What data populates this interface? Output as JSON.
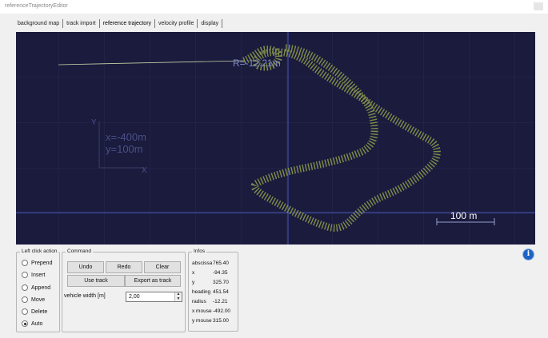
{
  "window": {
    "title": "referenceTrajectoryEditor"
  },
  "tabs": [
    {
      "label": "background map"
    },
    {
      "label": "track import"
    },
    {
      "label": "reference trajectory"
    },
    {
      "label": "velocity profile"
    },
    {
      "label": "display"
    }
  ],
  "view": {
    "radius_label": "R=-12.21m",
    "origin_y_axis": "Y",
    "origin_x_axis": "X",
    "origin_x": "x=-400m",
    "origin_y": "y=100m",
    "scale_label": "100 m",
    "colors": {
      "background": "#1a1b3d",
      "track": "#e8f0d0",
      "markers": "#7e8a4a",
      "crosshair": "#4a57b8"
    }
  },
  "left_click_action": {
    "title": "Left click action",
    "options": [
      "Prepend",
      "Insert",
      "Append",
      "Move",
      "Delete",
      "Auto"
    ],
    "selected": "Auto"
  },
  "command": {
    "title": "Command",
    "undo": "Undo",
    "redo": "Redo",
    "clear": "Clear",
    "use_track": "Use track",
    "export_as_track": "Export as track",
    "vehicle_width_label": "vehicle width [m]",
    "vehicle_width_value": "2,00"
  },
  "infos": {
    "title": "Infos",
    "rows": [
      {
        "key": "abscissa",
        "value": "765.40"
      },
      {
        "key": "x",
        "value": "-94.35"
      },
      {
        "key": "y",
        "value": "325.70"
      },
      {
        "key": "heading",
        "value": "451.54"
      },
      {
        "key": "radius",
        "value": "-12.21"
      },
      {
        "key": "x mouse",
        "value": "-492.00"
      },
      {
        "key": "y mouse",
        "value": "315.00"
      }
    ]
  },
  "info_button": {
    "glyph": "i"
  }
}
